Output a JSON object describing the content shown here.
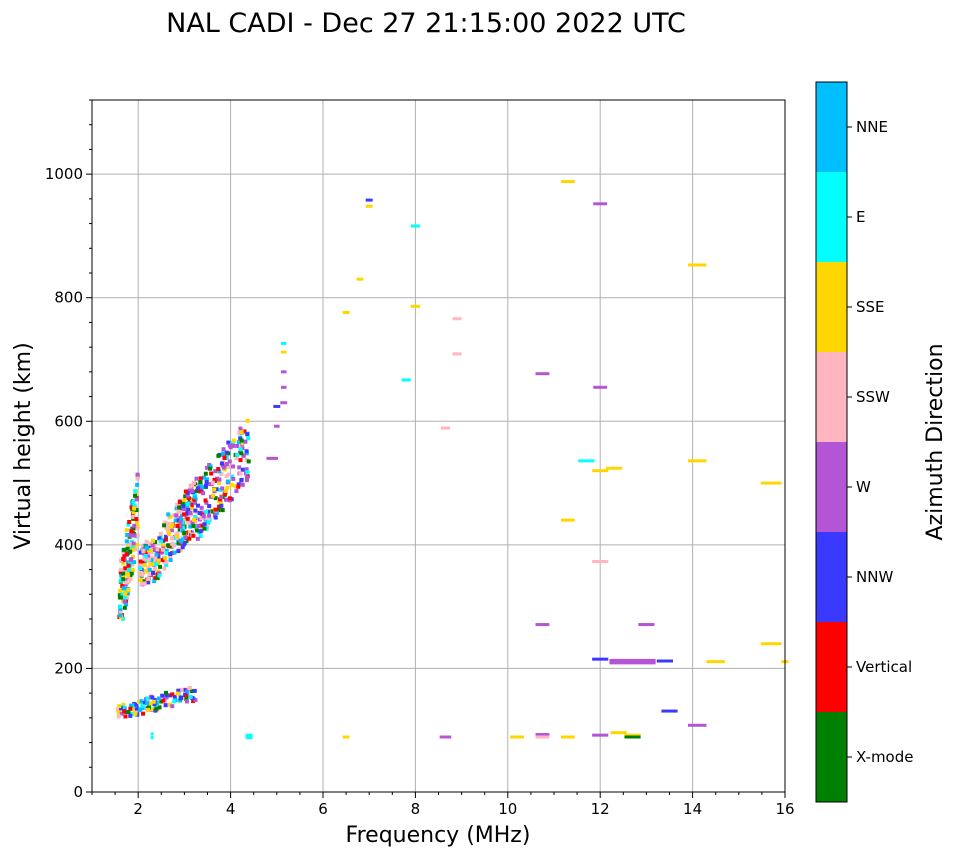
{
  "chart_data": {
    "type": "scatter",
    "title": "NAL CADI - Dec 27 21:15:00 2022 UTC",
    "xlabel": "Frequency (MHz)",
    "ylabel": "Virtual height (km)",
    "xlim": [
      1,
      16
    ],
    "ylim": [
      0,
      1120
    ],
    "xticks": [
      2,
      4,
      6,
      8,
      10,
      12,
      14,
      16
    ],
    "yticks": [
      0,
      200,
      400,
      600,
      800,
      1000
    ],
    "grid": true,
    "colorbar": {
      "title": "Azimuth Direction",
      "categories": [
        {
          "name": "X-mode",
          "color": "#008000"
        },
        {
          "name": "Vertical",
          "color": "#ff0000"
        },
        {
          "name": "NNW",
          "color": "#3a3aff"
        },
        {
          "name": "W",
          "color": "#b455d6"
        },
        {
          "name": "SSW",
          "color": "#ffb6c1"
        },
        {
          "name": "SSE",
          "color": "#ffd700"
        },
        {
          "name": "E",
          "color": "#00ffff"
        },
        {
          "name": "NNE",
          "color": "#00bfff"
        }
      ]
    },
    "segments": [
      {
        "f": 7.0,
        "h": 958,
        "len": 0.15,
        "dir": "NNW"
      },
      {
        "f": 7.0,
        "h": 948,
        "len": 0.15,
        "dir": "SSE"
      },
      {
        "f": 6.8,
        "h": 830,
        "len": 0.15,
        "dir": "SSE"
      },
      {
        "f": 6.5,
        "h": 776,
        "len": 0.15,
        "dir": "SSE"
      },
      {
        "f": 8.0,
        "h": 916,
        "len": 0.2,
        "dir": "E"
      },
      {
        "f": 8.0,
        "h": 786,
        "len": 0.2,
        "dir": "SSE"
      },
      {
        "f": 8.9,
        "h": 766,
        "len": 0.2,
        "dir": "SSW"
      },
      {
        "f": 8.9,
        "h": 709,
        "len": 0.2,
        "dir": "SSW"
      },
      {
        "f": 7.8,
        "h": 667,
        "len": 0.2,
        "dir": "E"
      },
      {
        "f": 8.65,
        "h": 589,
        "len": 0.2,
        "dir": "SSW"
      },
      {
        "f": 5.15,
        "h": 726,
        "len": 0.12,
        "dir": "E"
      },
      {
        "f": 5.15,
        "h": 712,
        "len": 0.12,
        "dir": "SSE"
      },
      {
        "f": 5.15,
        "h": 680,
        "len": 0.12,
        "dir": "W"
      },
      {
        "f": 5.15,
        "h": 655,
        "len": 0.12,
        "dir": "W"
      },
      {
        "f": 5.15,
        "h": 630,
        "len": 0.15,
        "dir": "W"
      },
      {
        "f": 5.0,
        "h": 624,
        "len": 0.15,
        "dir": "NNW"
      },
      {
        "f": 5.0,
        "h": 592,
        "len": 0.12,
        "dir": "W"
      },
      {
        "f": 4.9,
        "h": 540,
        "len": 0.25,
        "dir": "W"
      },
      {
        "f": 11.3,
        "h": 988,
        "len": 0.3,
        "dir": "SSE"
      },
      {
        "f": 12.0,
        "h": 952,
        "len": 0.3,
        "dir": "W"
      },
      {
        "f": 14.1,
        "h": 853,
        "len": 0.4,
        "dir": "SSE"
      },
      {
        "f": 10.75,
        "h": 677,
        "len": 0.3,
        "dir": "W"
      },
      {
        "f": 12.0,
        "h": 655,
        "len": 0.3,
        "dir": "W"
      },
      {
        "f": 11.7,
        "h": 536,
        "len": 0.35,
        "dir": "E"
      },
      {
        "f": 12.0,
        "h": 520,
        "len": 0.35,
        "dir": "SSE"
      },
      {
        "f": 12.3,
        "h": 524,
        "len": 0.35,
        "dir": "SSE"
      },
      {
        "f": 14.1,
        "h": 536,
        "len": 0.4,
        "dir": "SSE"
      },
      {
        "f": 15.7,
        "h": 500,
        "len": 0.45,
        "dir": "SSE"
      },
      {
        "f": 11.3,
        "h": 440,
        "len": 0.3,
        "dir": "SSE"
      },
      {
        "f": 12.0,
        "h": 373,
        "len": 0.35,
        "dir": "SSW"
      },
      {
        "f": 10.75,
        "h": 271,
        "len": 0.3,
        "dir": "W"
      },
      {
        "f": 13.0,
        "h": 271,
        "len": 0.35,
        "dir": "W"
      },
      {
        "f": 15.7,
        "h": 240,
        "len": 0.45,
        "dir": "SSE"
      },
      {
        "f": 12.0,
        "h": 215,
        "len": 0.35,
        "dir": "NNW"
      },
      {
        "f": 12.7,
        "h": 213,
        "len": 1.0,
        "dir": "W"
      },
      {
        "f": 12.7,
        "h": 209,
        "len": 1.0,
        "dir": "W"
      },
      {
        "f": 13.4,
        "h": 212,
        "len": 0.35,
        "dir": "NNW"
      },
      {
        "f": 14.5,
        "h": 211,
        "len": 0.4,
        "dir": "SSE"
      },
      {
        "f": 16.0,
        "h": 211,
        "len": 0.15,
        "dir": "SSE"
      },
      {
        "f": 13.5,
        "h": 131,
        "len": 0.35,
        "dir": "NNW"
      },
      {
        "f": 14.1,
        "h": 108,
        "len": 0.4,
        "dir": "W"
      },
      {
        "f": 12.4,
        "h": 96,
        "len": 0.35,
        "dir": "SSE"
      },
      {
        "f": 12.7,
        "h": 92,
        "len": 0.35,
        "dir": "SSE"
      },
      {
        "f": 12.7,
        "h": 89,
        "len": 0.35,
        "dir": "X-mode"
      },
      {
        "f": 12.0,
        "h": 92,
        "len": 0.35,
        "dir": "W"
      },
      {
        "f": 11.3,
        "h": 89,
        "len": 0.3,
        "dir": "SSE"
      },
      {
        "f": 10.75,
        "h": 93,
        "len": 0.3,
        "dir": "W"
      },
      {
        "f": 10.75,
        "h": 89,
        "len": 0.3,
        "dir": "SSW"
      },
      {
        "f": 10.2,
        "h": 89,
        "len": 0.3,
        "dir": "SSE"
      },
      {
        "f": 8.65,
        "h": 89,
        "len": 0.25,
        "dir": "W"
      },
      {
        "f": 6.5,
        "h": 89,
        "len": 0.15,
        "dir": "SSE"
      },
      {
        "f": 4.4,
        "h": 92,
        "len": 0.15,
        "dir": "E"
      },
      {
        "f": 4.4,
        "h": 88,
        "len": 0.15,
        "dir": "E"
      },
      {
        "f": 2.3,
        "h": 94,
        "len": 0.06,
        "dir": "E"
      },
      {
        "f": 2.3,
        "h": 88,
        "len": 0.06,
        "dir": "E"
      }
    ],
    "clusters": [
      {
        "f_min": 1.55,
        "f_max": 1.95,
        "h_min": 280,
        "h_max": 540,
        "count": 170,
        "seed": 11,
        "dirs": [
          "Vertical",
          "Vertical",
          "SSE",
          "SSE",
          "SSW",
          "E",
          "NNE",
          "X-mode",
          "W"
        ]
      },
      {
        "f_min": 2.0,
        "f_max": 3.2,
        "h_min": 335,
        "h_max": 520,
        "count": 260,
        "seed": 23,
        "dirs": [
          "SSW",
          "SSW",
          "SSW",
          "E",
          "NNE",
          "W",
          "Vertical",
          "X-mode",
          "SSE",
          "NNW"
        ]
      },
      {
        "f_min": 2.8,
        "f_max": 4.35,
        "h_min": 400,
        "h_max": 625,
        "count": 260,
        "seed": 37,
        "dirs": [
          "W",
          "W",
          "W",
          "E",
          "NNE",
          "SSW",
          "Vertical",
          "X-mode",
          "NNW",
          "SSE"
        ]
      },
      {
        "f_min": 1.5,
        "f_max": 3.2,
        "h_min": 122,
        "h_max": 178,
        "count": 110,
        "seed": 53,
        "dirs": [
          "NNW",
          "Vertical",
          "W",
          "E",
          "SSW",
          "NNE",
          "SSE",
          "X-mode"
        ]
      }
    ]
  }
}
